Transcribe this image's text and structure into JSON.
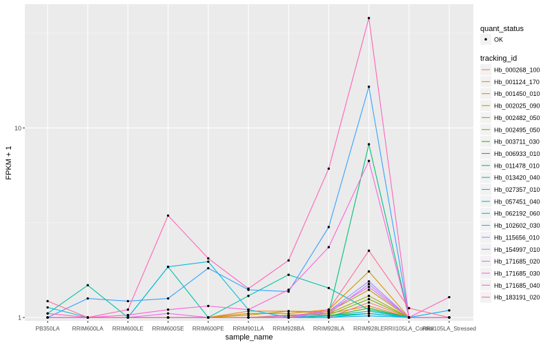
{
  "chart_data": {
    "type": "line",
    "title": "",
    "xlabel": "sample_name",
    "ylabel": "FPKM + 1",
    "y_scale": "log10",
    "ylim": [
      0.96,
      45
    ],
    "y_ticks": [
      1,
      10
    ],
    "y_tick_labels": [
      "1",
      "10"
    ],
    "grid": true,
    "legend_position": "right",
    "categories": [
      "PB350LA",
      "RRIM600LA",
      "RRIM600LE",
      "RRIM600SE",
      "RRIM600PE",
      "RRIM901LA",
      "RRIM928BA",
      "RRIM928LA",
      "RRIM928LE",
      "RRII105LA_Control",
      "RRII105LA_Stressed"
    ],
    "point_legend": {
      "title": "quant_status",
      "items": [
        "OK"
      ]
    },
    "legend_title": "tracking_id",
    "series": [
      {
        "name": "Hb_000268_100",
        "color": "#F8766D",
        "values": [
          1.0,
          1.0,
          1.0,
          1.0,
          1.0,
          1.0,
          1.0,
          1.0,
          1.2,
          1.0,
          1.0
        ]
      },
      {
        "name": "Hb_001124_170",
        "color": "#EA8331",
        "values": [
          1.0,
          1.0,
          1.0,
          1.0,
          1.0,
          1.08,
          1.08,
          1.05,
          1.15,
          1.0,
          1.0
        ]
      },
      {
        "name": "Hb_001450_010",
        "color": "#D89000",
        "values": [
          1.0,
          1.0,
          1.0,
          1.0,
          1.0,
          1.05,
          1.05,
          1.1,
          1.75,
          1.0,
          1.0
        ]
      },
      {
        "name": "Hb_002025_090",
        "color": "#C09B00",
        "values": [
          1.0,
          1.0,
          1.0,
          1.0,
          1.0,
          1.03,
          1.08,
          1.07,
          1.4,
          1.0,
          1.0
        ]
      },
      {
        "name": "Hb_002482_050",
        "color": "#A3A500",
        "values": [
          1.0,
          1.0,
          1.0,
          1.0,
          1.0,
          1.0,
          1.03,
          1.05,
          1.3,
          1.0,
          1.0
        ]
      },
      {
        "name": "Hb_002495_050",
        "color": "#7CAE00",
        "values": [
          1.0,
          1.0,
          1.0,
          1.0,
          1.0,
          1.0,
          1.02,
          1.03,
          1.25,
          1.0,
          1.0
        ]
      },
      {
        "name": "Hb_003711_030",
        "color": "#39B600",
        "values": [
          1.0,
          1.0,
          1.0,
          1.0,
          1.0,
          1.0,
          1.0,
          1.02,
          1.12,
          1.0,
          1.0
        ]
      },
      {
        "name": "Hb_006933_010",
        "color": "#00BB4E",
        "values": [
          1.0,
          1.0,
          1.0,
          1.0,
          1.0,
          1.0,
          1.0,
          1.02,
          1.05,
          1.0,
          1.0
        ]
      },
      {
        "name": "Hb_011478_010",
        "color": "#00BF7D",
        "values": [
          1.0,
          1.0,
          1.0,
          1.0,
          1.0,
          1.0,
          1.0,
          1.05,
          8.2,
          1.0,
          1.0
        ]
      },
      {
        "name": "Hb_013420_040",
        "color": "#00C1A3",
        "values": [
          1.05,
          1.48,
          1.0,
          1.85,
          1.0,
          1.3,
          1.68,
          1.43,
          1.1,
          1.0,
          1.0
        ]
      },
      {
        "name": "Hb_027357_010",
        "color": "#00BFC4",
        "values": [
          1.0,
          1.0,
          1.0,
          1.0,
          1.0,
          1.0,
          1.0,
          1.02,
          1.08,
          1.0,
          1.0
        ]
      },
      {
        "name": "Hb_057451_040",
        "color": "#00BAE0",
        "values": [
          1.13,
          1.0,
          1.0,
          1.85,
          1.97,
          1.1,
          1.0,
          1.0,
          1.05,
          1.0,
          1.0
        ]
      },
      {
        "name": "Hb_062192_060",
        "color": "#00B0F6",
        "values": [
          1.0,
          1.0,
          1.0,
          1.0,
          1.0,
          1.0,
          1.0,
          1.0,
          1.02,
          1.0,
          1.09
        ]
      },
      {
        "name": "Hb_102602_030",
        "color": "#35A2FF",
        "values": [
          1.0,
          1.26,
          1.22,
          1.26,
          1.82,
          1.4,
          1.37,
          3.0,
          16.5,
          1.0,
          1.0
        ]
      },
      {
        "name": "Hb_115656_010",
        "color": "#9590FF",
        "values": [
          1.0,
          1.0,
          1.0,
          1.0,
          1.0,
          1.0,
          1.0,
          1.08,
          1.55,
          1.0,
          1.0
        ]
      },
      {
        "name": "Hb_154997_010",
        "color": "#C77CFF",
        "values": [
          1.0,
          1.0,
          1.0,
          1.0,
          1.0,
          1.0,
          1.0,
          1.05,
          1.5,
          1.0,
          1.0
        ]
      },
      {
        "name": "Hb_171685_020",
        "color": "#E76BF3",
        "values": [
          1.0,
          1.0,
          1.0,
          1.05,
          1.0,
          1.0,
          1.02,
          1.08,
          1.45,
          1.0,
          1.0
        ]
      },
      {
        "name": "Hb_171685_030",
        "color": "#FA62DB",
        "values": [
          1.0,
          1.0,
          1.03,
          1.1,
          1.15,
          1.1,
          1.4,
          2.35,
          6.7,
          1.0,
          1.0
        ]
      },
      {
        "name": "Hb_171685_040",
        "color": "#FF62BC",
        "values": [
          1.05,
          1.0,
          1.1,
          3.45,
          2.05,
          1.42,
          2.0,
          6.1,
          38.0,
          1.0,
          1.28
        ]
      },
      {
        "name": "Hb_183191_020",
        "color": "#FF6C91",
        "values": [
          1.22,
          1.0,
          1.0,
          1.0,
          1.0,
          1.0,
          1.0,
          1.1,
          2.25,
          1.12,
          1.0
        ]
      }
    ]
  }
}
